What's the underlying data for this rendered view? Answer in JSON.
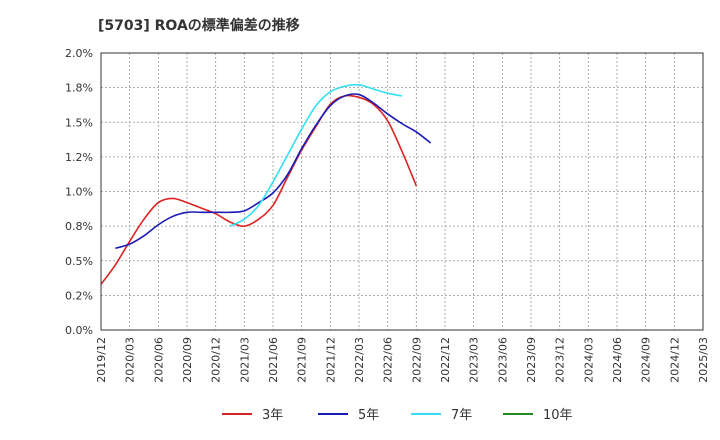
{
  "chart_data": {
    "type": "line",
    "title": "[5703]  ROAの標準偏差の推移",
    "xlabel": "",
    "ylabel": "",
    "ylim": [
      0,
      2.0
    ],
    "x_ticks": [
      "2019/12",
      "2020/03",
      "2020/06",
      "2020/09",
      "2020/12",
      "2021/03",
      "2021/06",
      "2021/09",
      "2021/12",
      "2022/03",
      "2022/06",
      "2022/09",
      "2022/12",
      "2023/03",
      "2023/06",
      "2023/09",
      "2023/12",
      "2024/03",
      "2024/06",
      "2024/09",
      "2024/12",
      "2025/03"
    ],
    "y_ticks": [
      "0.0%",
      "0.25%",
      "0.5%",
      "0.75%",
      "1.0%",
      "1.25%",
      "1.5%",
      "1.75%",
      "2.0%"
    ],
    "y_tick_labels": [
      "0.0%",
      "0.2%",
      "0.5%",
      "0.8%",
      "1.0%",
      "1.2%",
      "1.5%",
      "1.8%",
      "2.0%"
    ],
    "grid": true,
    "legend_position": "bottom",
    "series": [
      {
        "name": "3年",
        "color": "#dd2222",
        "start_index": 0,
        "values": [
          0.33,
          0.47,
          0.64,
          0.8,
          0.92,
          0.95,
          0.92,
          0.88,
          0.84,
          0.78,
          0.75,
          0.8,
          0.9,
          1.1,
          1.3,
          1.47,
          1.63,
          1.69,
          1.68,
          1.63,
          1.51,
          1.29,
          1.04
        ]
      },
      {
        "name": "5年",
        "color": "#1a1ab4",
        "start_index": 1,
        "values": [
          0.59,
          0.62,
          0.68,
          0.76,
          0.82,
          0.85,
          0.85,
          0.85,
          0.85,
          0.86,
          0.92,
          0.99,
          1.12,
          1.31,
          1.48,
          1.62,
          1.69,
          1.7,
          1.64,
          1.56,
          1.49,
          1.43,
          1.35
        ]
      },
      {
        "name": "7年",
        "color": "#33e0f0",
        "start_index": 9,
        "values": [
          0.75,
          0.8,
          0.9,
          1.07,
          1.26,
          1.45,
          1.62,
          1.72,
          1.76,
          1.77,
          1.74,
          1.71,
          1.69
        ]
      },
      {
        "name": "10年",
        "color": "#228822",
        "start_index": 0,
        "values": []
      }
    ]
  }
}
